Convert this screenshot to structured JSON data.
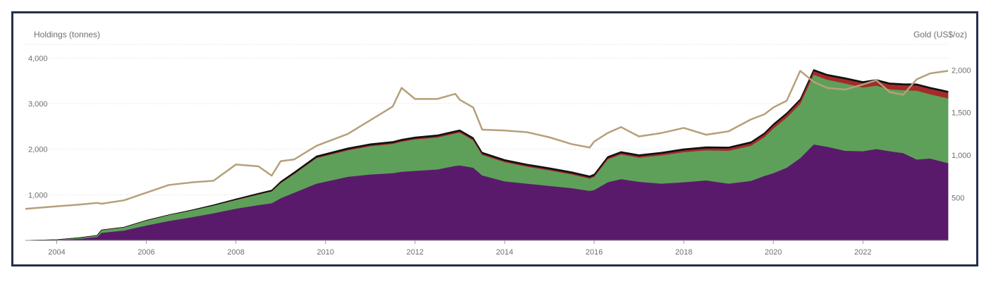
{
  "chart_data": {
    "type": "area",
    "left_axis_title": "Holdings (tonnes)",
    "right_axis_title": "Gold (US$/oz)",
    "x_ticks": [
      "2004",
      "2006",
      "2008",
      "2010",
      "2012",
      "2014",
      "2016",
      "2018",
      "2020",
      "2022"
    ],
    "y_left_ticks": [
      "1,000",
      "2,000",
      "3,000",
      "4,000"
    ],
    "y_left_tick_values": [
      1000,
      2000,
      3000,
      4000
    ],
    "y_right_ticks": [
      "500",
      "1,000",
      "1,500",
      "2,000"
    ],
    "y_right_tick_values": [
      500,
      1000,
      1500,
      2000
    ],
    "x_range": [
      2003.3,
      2023.9
    ],
    "y_left_range": [
      0,
      4300
    ],
    "y_right_range": [
      0,
      2300
    ],
    "grid": true,
    "x": [
      2003.3,
      2004.0,
      2004.5,
      2004.9,
      2005.0,
      2005.5,
      2006.0,
      2006.5,
      2007.0,
      2007.5,
      2008.0,
      2008.5,
      2008.8,
      2009.0,
      2009.3,
      2009.8,
      2010.5,
      2011.0,
      2011.5,
      2011.7,
      2012.0,
      2012.5,
      2012.9,
      2013.0,
      2013.3,
      2013.5,
      2014.0,
      2014.5,
      2015.0,
      2015.5,
      2015.9,
      2016.0,
      2016.3,
      2016.6,
      2017.0,
      2017.5,
      2018.0,
      2018.5,
      2019.0,
      2019.5,
      2019.8,
      2020.0,
      2020.3,
      2020.6,
      2020.9,
      2021.2,
      2021.6,
      2022.0,
      2022.3,
      2022.6,
      2022.9,
      2023.2,
      2023.5,
      2023.9
    ],
    "series": [
      {
        "name": "",
        "color": "#5a1a6b",
        "values": [
          0,
          10,
          40,
          80,
          170,
          220,
          330,
          430,
          510,
          600,
          700,
          780,
          820,
          930,
          1050,
          1250,
          1400,
          1450,
          1480,
          1510,
          1530,
          1560,
          1640,
          1650,
          1600,
          1430,
          1300,
          1250,
          1200,
          1150,
          1090,
          1110,
          1280,
          1350,
          1290,
          1250,
          1280,
          1320,
          1250,
          1310,
          1420,
          1480,
          1600,
          1810,
          2110,
          2060,
          1970,
          1960,
          2010,
          1960,
          1920,
          1780,
          1800,
          1700
        ]
      },
      {
        "name": "",
        "color": "#5ea05a",
        "values": [
          0,
          5,
          20,
          30,
          60,
          70,
          110,
          130,
          150,
          170,
          190,
          230,
          260,
          330,
          410,
          560,
          580,
          620,
          640,
          660,
          690,
          700,
          710,
          720,
          600,
          450,
          420,
          370,
          340,
          300,
          270,
          290,
          500,
          540,
          530,
          620,
          660,
          660,
          720,
          770,
          850,
          980,
          1100,
          1190,
          1530,
          1470,
          1480,
          1400,
          1390,
          1360,
          1380,
          1510,
          1410,
          1420
        ]
      },
      {
        "name": "",
        "color": "#a52a2a",
        "values": [
          0,
          0,
          0,
          0,
          0,
          0,
          0,
          0,
          0,
          0,
          5,
          5,
          5,
          10,
          10,
          15,
          20,
          20,
          20,
          20,
          20,
          25,
          25,
          25,
          25,
          25,
          25,
          25,
          25,
          25,
          25,
          25,
          30,
          30,
          30,
          35,
          40,
          45,
          50,
          55,
          60,
          65,
          70,
          75,
          80,
          85,
          90,
          95,
          100,
          105,
          110,
          115,
          120,
          125
        ]
      },
      {
        "name": "",
        "color": "#111111",
        "values": [
          0,
          0,
          0,
          0,
          0,
          0,
          0,
          0,
          5,
          10,
          15,
          20,
          20,
          25,
          30,
          30,
          30,
          30,
          30,
          30,
          30,
          30,
          30,
          30,
          30,
          30,
          30,
          30,
          30,
          30,
          30,
          30,
          30,
          30,
          30,
          30,
          30,
          30,
          30,
          30,
          30,
          30,
          30,
          30,
          30,
          30,
          30,
          30,
          30,
          30,
          30,
          30,
          30,
          30
        ]
      }
    ],
    "gold_price": {
      "name": "",
      "color": "#b5a07a",
      "values": [
        370,
        400,
        420,
        440,
        430,
        470,
        560,
        650,
        680,
        700,
        890,
        870,
        760,
        930,
        950,
        1110,
        1250,
        1410,
        1570,
        1790,
        1660,
        1660,
        1720,
        1650,
        1560,
        1300,
        1290,
        1270,
        1210,
        1130,
        1090,
        1160,
        1260,
        1330,
        1220,
        1260,
        1320,
        1240,
        1280,
        1420,
        1480,
        1560,
        1640,
        1990,
        1860,
        1790,
        1770,
        1830,
        1880,
        1740,
        1710,
        1890,
        1960,
        1990
      ]
    }
  }
}
